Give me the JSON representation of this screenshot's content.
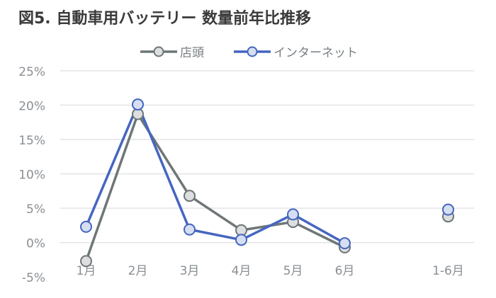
{
  "chart_data": {
    "type": "line",
    "title": "図5. 自動車用バッテリー 数量前年比推移",
    "categories": [
      "1月",
      "2月",
      "3月",
      "4月",
      "5月",
      "6月",
      "",
      "1-6月"
    ],
    "yticks": [
      "-5%",
      "0%",
      "5%",
      "10%",
      "15%",
      "20%",
      "25%"
    ],
    "ylim": [
      -5,
      25
    ],
    "grid": true,
    "legend_position": "top",
    "series": [
      {
        "name": "店頭",
        "color": "#6f7677",
        "marker_fill": "#dcdedf",
        "values": [
          -2.7,
          18.7,
          6.8,
          1.8,
          3.0,
          -0.7,
          null,
          3.8
        ]
      },
      {
        "name": "インターネット",
        "color": "#4566c0",
        "marker_fill": "#d6dff2",
        "values": [
          2.3,
          20.1,
          1.9,
          0.4,
          4.1,
          -0.1,
          null,
          4.8
        ]
      }
    ]
  }
}
